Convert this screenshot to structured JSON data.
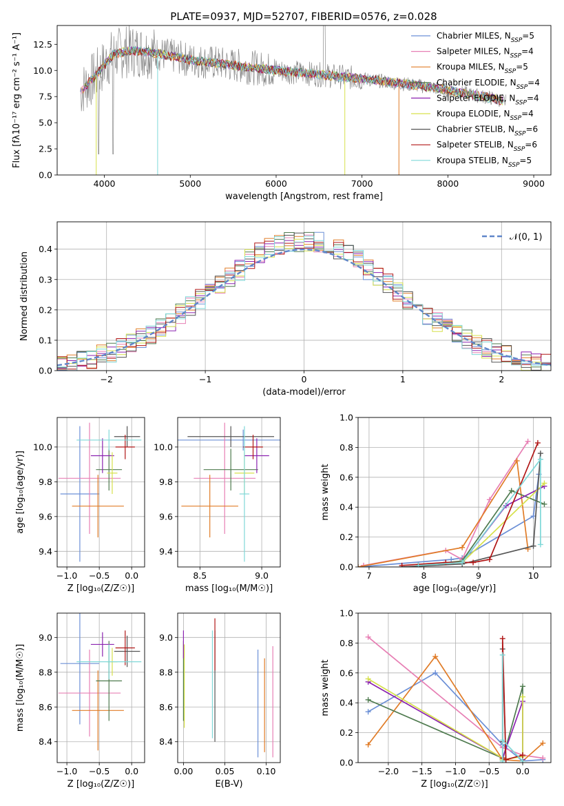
{
  "colors": {
    "Chabrier MILES": "#6b8fd6",
    "Salpeter MILES": "#e77fb4",
    "Kroupa MILES": "#e07b26",
    "Chabrier ELODIE": "#4e7a4e",
    "Salpeter ELODIE": "#8a22b0",
    "Kroupa ELODIE": "#d6e04a",
    "Chabrier STELIB": "#555555",
    "Salpeter STELIB": "#b01515",
    "Kroupa STELIB": "#7fd8d8",
    "data": "#888888",
    "normal": "#5f86c9"
  },
  "chart_data": [
    {
      "type": "line",
      "title": "PLATE=0937, MJD=52707, FIBERID=0576, z=0.028",
      "xlabel": "wavelength [Angstrom, rest frame]",
      "ylabel": "Flux [fλ10⁻¹⁷ erg cm⁻² s⁻¹ A⁻¹]",
      "xlim": [
        3450,
        9200
      ],
      "ylim": [
        0,
        14.3
      ],
      "xticks": [
        4000,
        5000,
        6000,
        7000,
        8000,
        9000
      ],
      "yticks": [
        0.0,
        2.5,
        5.0,
        7.5,
        10.0,
        12.5
      ],
      "grid": false,
      "legend": [
        {
          "name": "Chabrier MILES",
          "nssp": "5"
        },
        {
          "name": "Salpeter MILES",
          "nssp": "4"
        },
        {
          "name": "Kroupa MILES",
          "nssp": "5"
        },
        {
          "name": "Chabrier ELODIE",
          "nssp": "4"
        },
        {
          "name": "Salpeter ELODIE",
          "nssp": "4"
        },
        {
          "name": "Kroupa ELODIE",
          "nssp": "4"
        },
        {
          "name": "Chabrier STELIB",
          "nssp": "6"
        },
        {
          "name": "Salpeter STELIB",
          "nssp": "6"
        },
        {
          "name": "Kroupa STELIB",
          "nssp": "5"
        }
      ],
      "continuum": {
        "x": [
          3720,
          3900,
          4100,
          4300,
          4500,
          4700,
          5000,
          5500,
          6000,
          6500,
          7000,
          7400,
          7800,
          8200,
          8600,
          8680
        ],
        "y": [
          8.0,
          9.5,
          11.5,
          11.9,
          11.8,
          11.5,
          11.0,
          10.5,
          10.0,
          9.6,
          9.2,
          8.8,
          8.4,
          7.8,
          7.2,
          7.0
        ]
      }
    },
    {
      "type": "bar",
      "xlabel": "(data-model)/error",
      "ylabel": "Normed distribution",
      "xlim": [
        -2.5,
        2.5
      ],
      "ylim": [
        0,
        0.49
      ],
      "xticks": [
        -2,
        -1,
        0,
        1,
        2
      ],
      "yticks": [
        0.0,
        0.1,
        0.2,
        0.3,
        0.4
      ],
      "legend": "𝒩(0, 1)",
      "normal": {
        "mean": 0,
        "sigma": 1
      },
      "bin_width": 0.1
    },
    {
      "type": "scatter",
      "xlabel": "Z [log₁₀(Z/Z☉)]",
      "ylabel": "age  [log₁₀(age/yr)]",
      "xlim": [
        -1.15,
        0.2
      ],
      "ylim": [
        9.31,
        10.17
      ],
      "xticks": [
        -1.0,
        -0.5,
        0.0
      ],
      "yticks": [
        9.4,
        9.6,
        9.8,
        10.0
      ],
      "points": [
        {
          "x": -0.8,
          "xerr": 0.3,
          "y": 9.73,
          "yerr": 0.39,
          "c": "Chabrier MILES"
        },
        {
          "x": -0.65,
          "xerr": 0.48,
          "y": 9.82,
          "yerr": 0.32,
          "c": "Salpeter MILES"
        },
        {
          "x": -0.52,
          "xerr": 0.4,
          "y": 9.66,
          "yerr": 0.18,
          "c": "Kroupa MILES"
        },
        {
          "x": -0.35,
          "xerr": 0.2,
          "y": 9.87,
          "yerr": 0.12,
          "c": "Chabrier ELODIE"
        },
        {
          "x": -0.45,
          "xerr": 0.18,
          "y": 9.95,
          "yerr": 0.1,
          "c": "Salpeter ELODIE"
        },
        {
          "x": -0.3,
          "xerr": 0.08,
          "y": 9.85,
          "yerr": 0.12,
          "c": "Kroupa ELODIE"
        },
        {
          "x": -0.07,
          "xerr": 0.2,
          "y": 10.06,
          "yerr": 0.06,
          "c": "Chabrier STELIB"
        },
        {
          "x": -0.1,
          "xerr": 0.15,
          "y": 10.0,
          "yerr": 0.07,
          "c": "Salpeter STELIB"
        },
        {
          "x": -0.35,
          "xerr": 0.5,
          "y": 10.04,
          "yerr": 0.06,
          "c": "Kroupa STELIB"
        }
      ]
    },
    {
      "type": "scatter",
      "xlabel": "mass [log₁₀(M/M☉)]",
      "ylabel": "",
      "xlim": [
        8.32,
        9.15
      ],
      "ylim": [
        9.31,
        10.17
      ],
      "xticks": [
        8.5,
        9.0
      ],
      "yticks": [
        9.4,
        9.6,
        9.8,
        10.0
      ],
      "points": [
        {
          "x": 8.85,
          "xerr": 0.55,
          "y": 10.04,
          "yerr": 0.06,
          "c": "Chabrier MILES"
        },
        {
          "x": 8.7,
          "xerr": 0.25,
          "y": 9.82,
          "yerr": 0.32,
          "c": "Salpeter MILES"
        },
        {
          "x": 8.58,
          "xerr": 0.23,
          "y": 9.66,
          "yerr": 0.18,
          "c": "Kroupa MILES"
        },
        {
          "x": 8.75,
          "xerr": 0.22,
          "y": 9.87,
          "yerr": 0.12,
          "c": "Chabrier ELODIE"
        },
        {
          "x": 8.96,
          "xerr": 0.1,
          "y": 9.95,
          "yerr": 0.1,
          "c": "Salpeter ELODIE"
        },
        {
          "x": 8.86,
          "xerr": 0.08,
          "y": 9.85,
          "yerr": 0.12,
          "c": "Kroupa ELODIE"
        },
        {
          "x": 8.75,
          "xerr": 0.35,
          "y": 10.06,
          "yerr": 0.06,
          "c": "Chabrier STELIB"
        },
        {
          "x": 8.93,
          "xerr": 0.08,
          "y": 10.0,
          "yerr": 0.07,
          "c": "Salpeter STELIB"
        },
        {
          "x": 8.86,
          "xerr": 0.04,
          "y": 9.73,
          "yerr": 0.39,
          "c": "Kroupa STELIB"
        }
      ]
    },
    {
      "type": "line",
      "xlabel": "age  [log₁₀(age/yr)]",
      "ylabel": "mass weight",
      "xlim": [
        6.8,
        10.32
      ],
      "ylim": [
        0,
        1.0
      ],
      "xticks": [
        7,
        8,
        9,
        10
      ],
      "yticks": [
        0.0,
        0.2,
        0.4,
        0.6,
        0.8,
        1.0
      ],
      "series": [
        {
          "c": "Chabrier MILES",
          "x": [
            6.8,
            8.5,
            8.7,
            10.0,
            10.1
          ],
          "y": [
            0.0,
            0.05,
            0.06,
            0.34,
            0.62
          ]
        },
        {
          "c": "Salpeter MILES",
          "x": [
            6.9,
            8.4,
            8.7,
            9.2,
            9.9
          ],
          "y": [
            0.01,
            0.11,
            0.05,
            0.45,
            0.84
          ]
        },
        {
          "c": "Kroupa MILES",
          "x": [
            6.8,
            8.7,
            9.7,
            9.9
          ],
          "y": [
            0.0,
            0.13,
            0.71,
            0.12
          ]
        },
        {
          "c": "Chabrier ELODIE",
          "x": [
            7.9,
            8.7,
            9.6,
            10.2
          ],
          "y": [
            0.01,
            0.04,
            0.51,
            0.42
          ]
        },
        {
          "c": "Salpeter ELODIE",
          "x": [
            7.9,
            8.7,
            9.5,
            10.2
          ],
          "y": [
            0.01,
            0.03,
            0.41,
            0.54
          ]
        },
        {
          "c": "Kroupa ELODIE",
          "x": [
            7.9,
            8.7,
            10.2
          ],
          "y": [
            0.01,
            0.03,
            0.56
          ]
        },
        {
          "c": "Chabrier STELIB",
          "x": [
            7.6,
            8.7,
            10.0,
            10.13
          ],
          "y": [
            0.0,
            0.02,
            0.14,
            0.76
          ]
        },
        {
          "c": "Salpeter STELIB",
          "x": [
            7.6,
            8.4,
            8.9,
            9.2,
            10.08
          ],
          "y": [
            0.01,
            0.03,
            0.03,
            0.05,
            0.83
          ]
        },
        {
          "c": "Kroupa STELIB",
          "x": [
            7.9,
            8.7,
            10.13,
            10.13
          ],
          "y": [
            0.01,
            0.03,
            0.72,
            0.15
          ]
        }
      ]
    },
    {
      "type": "scatter",
      "xlabel": "Z [log₁₀(Z/Z☉)]",
      "ylabel": "mass [log₁₀(M/M☉)]",
      "xlim": [
        -1.15,
        0.2
      ],
      "ylim": [
        8.28,
        9.14
      ],
      "xticks": [
        -1.0,
        -0.5,
        0.0
      ],
      "yticks": [
        8.4,
        8.6,
        8.8,
        9.0
      ],
      "points": [
        {
          "x": -0.8,
          "xerr": 0.3,
          "y": 8.85,
          "yerr": 0.35,
          "c": "Chabrier MILES"
        },
        {
          "x": -0.65,
          "xerr": 0.48,
          "y": 8.68,
          "yerr": 0.25,
          "c": "Salpeter MILES"
        },
        {
          "x": -0.52,
          "xerr": 0.4,
          "y": 8.58,
          "yerr": 0.23,
          "c": "Kroupa MILES"
        },
        {
          "x": -0.35,
          "xerr": 0.2,
          "y": 8.75,
          "yerr": 0.23,
          "c": "Chabrier ELODIE"
        },
        {
          "x": -0.45,
          "xerr": 0.18,
          "y": 8.96,
          "yerr": 0.07,
          "c": "Salpeter ELODIE"
        },
        {
          "x": -0.3,
          "xerr": 0.08,
          "y": 8.86,
          "yerr": 0.08,
          "c": "Kroupa ELODIE"
        },
        {
          "x": -0.07,
          "xerr": 0.2,
          "y": 8.92,
          "yerr": 0.09,
          "c": "Chabrier STELIB"
        },
        {
          "x": -0.1,
          "xerr": 0.15,
          "y": 8.94,
          "yerr": 0.1,
          "c": "Salpeter STELIB"
        },
        {
          "x": -0.35,
          "xerr": 0.5,
          "y": 8.86,
          "yerr": 0.1,
          "c": "Kroupa STELIB"
        }
      ]
    },
    {
      "type": "scatter",
      "xlabel": "E(B-V)",
      "ylabel": "",
      "xlim": [
        -0.007,
        0.117
      ],
      "ylim": [
        8.28,
        9.14
      ],
      "xticks": [
        0.0,
        0.05,
        0.1
      ],
      "yticks": [
        8.4,
        8.6,
        8.8,
        9.0
      ],
      "points": [
        {
          "x": 0.09,
          "y": 8.62,
          "yerr": 0.31,
          "c": "Chabrier MILES"
        },
        {
          "x": 0.108,
          "y": 8.63,
          "yerr": 0.32,
          "c": "Salpeter MILES"
        },
        {
          "x": 0.098,
          "y": 8.61,
          "yerr": 0.27,
          "c": "Kroupa MILES"
        },
        {
          "x": 0.0,
          "y": 8.75,
          "yerr": 0.23,
          "c": "Chabrier ELODIE"
        },
        {
          "x": 0.0,
          "y": 8.96,
          "yerr": 0.08,
          "c": "Salpeter ELODIE"
        },
        {
          "x": 0.001,
          "y": 8.72,
          "yerr": 0.24,
          "c": "Kroupa ELODIE"
        },
        {
          "x": 0.038,
          "y": 8.72,
          "yerr": 0.32,
          "c": "Chabrier STELIB"
        },
        {
          "x": 0.038,
          "y": 8.96,
          "yerr": 0.15,
          "c": "Salpeter STELIB"
        },
        {
          "x": 0.035,
          "y": 8.73,
          "yerr": 0.31,
          "c": "Kroupa STELIB"
        }
      ]
    },
    {
      "type": "line",
      "xlabel": "Z [log₁₀(Z/Z☉)]",
      "ylabel": "mass weight",
      "xlim": [
        -2.45,
        0.42
      ],
      "ylim": [
        0,
        1.0
      ],
      "xticks": [
        -2.0,
        -1.5,
        -1.0,
        -0.5,
        0.0
      ],
      "yticks": [
        0.0,
        0.2,
        0.4,
        0.6,
        0.8,
        1.0
      ],
      "series": [
        {
          "c": "Chabrier MILES",
          "x": [
            -2.3,
            -1.3,
            -0.3,
            0.0,
            0.3
          ],
          "y": [
            0.34,
            0.6,
            0.12,
            0.01,
            0.02
          ]
        },
        {
          "c": "Salpeter MILES",
          "x": [
            -2.3,
            -0.3,
            0.0,
            0.3
          ],
          "y": [
            0.84,
            0.1,
            0.05,
            0.03
          ]
        },
        {
          "c": "Kroupa MILES",
          "x": [
            -2.3,
            -1.3,
            -0.3,
            0.0,
            0.3
          ],
          "y": [
            0.12,
            0.71,
            0.02,
            0.01,
            0.13
          ]
        },
        {
          "c": "Chabrier ELODIE",
          "x": [
            -2.3,
            -0.3,
            -0.3,
            0.0,
            0.0
          ],
          "y": [
            0.42,
            0.03,
            0.02,
            0.51,
            0.01
          ]
        },
        {
          "c": "Salpeter ELODIE",
          "x": [
            -2.3,
            -0.3,
            0.0,
            0.0
          ],
          "y": [
            0.54,
            0.03,
            0.41,
            0.02
          ]
        },
        {
          "c": "Kroupa ELODIE",
          "x": [
            -2.3,
            -0.3,
            -0.3,
            0.0,
            0.0
          ],
          "y": [
            0.56,
            0.03,
            0.02,
            0.04,
            0.44
          ]
        },
        {
          "c": "Chabrier STELIB",
          "x": [
            -0.3,
            -0.3,
            -0.25
          ],
          "y": [
            0.14,
            0.76,
            0.02
          ]
        },
        {
          "c": "Salpeter STELIB",
          "x": [
            -0.3,
            -0.3,
            -0.25,
            0.0
          ],
          "y": [
            0.03,
            0.83,
            0.02,
            0.05
          ]
        },
        {
          "c": "Kroupa STELIB",
          "x": [
            -0.3,
            -0.3,
            -0.3,
            0.0
          ],
          "y": [
            0.01,
            0.72,
            0.15,
            0.01
          ]
        }
      ]
    }
  ]
}
